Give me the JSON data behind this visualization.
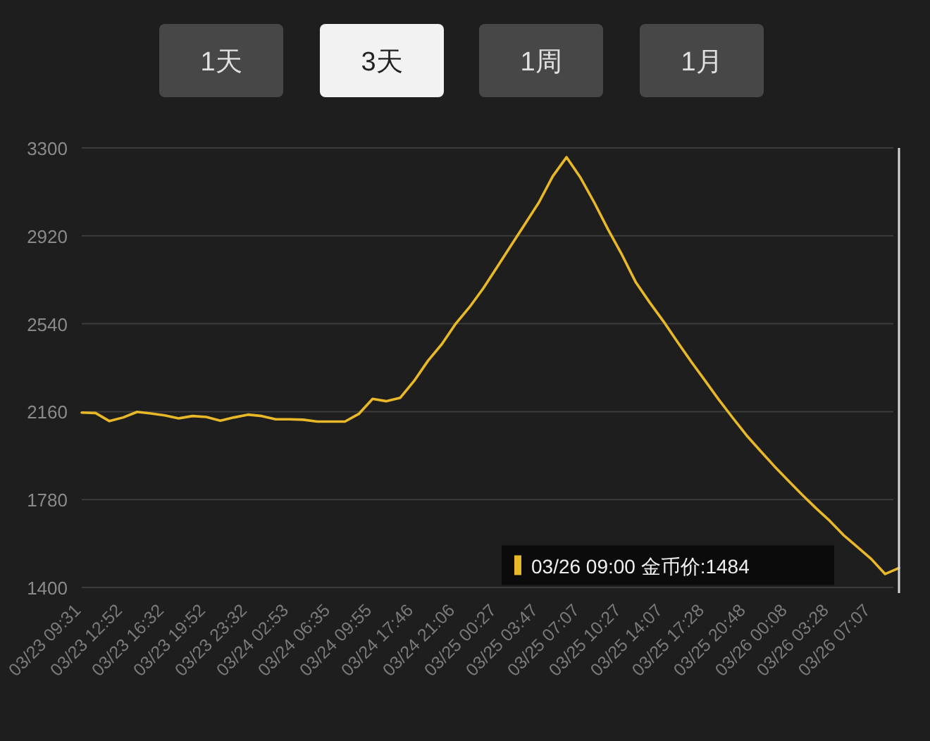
{
  "chart_data": {
    "type": "line",
    "categories": [
      "03/23 09:31",
      null,
      null,
      "03/23 12:52",
      null,
      null,
      "03/23 16:32",
      null,
      null,
      "03/23 19:52",
      null,
      null,
      "03/23 23:32",
      null,
      null,
      "03/24 02:53",
      null,
      null,
      "03/24 06:35",
      null,
      null,
      "03/24 09:55",
      null,
      null,
      "03/24 17:46",
      null,
      null,
      "03/24 21:06",
      null,
      null,
      "03/25 00:27",
      null,
      null,
      "03/25 03:47",
      null,
      null,
      "03/25 07:07",
      null,
      null,
      "03/25 10:27",
      null,
      null,
      "03/25 14:07",
      null,
      null,
      "03/25 17:28",
      null,
      null,
      "03/25 20:48",
      null,
      null,
      "03/26 00:08",
      null,
      null,
      "03/26 03:28",
      null,
      null,
      "03/26 07:07",
      null,
      null
    ],
    "series": [
      {
        "color": "#e8b828",
        "values": [
          2156,
          2154,
          2119,
          2135,
          2159,
          2152,
          2144,
          2131,
          2141,
          2137,
          2121,
          2135,
          2147,
          2141,
          2127,
          2127,
          2125,
          2117,
          2117,
          2117,
          2150,
          2215,
          2205,
          2220,
          2293,
          2380,
          2452,
          2540,
          2612,
          2694,
          2786,
          2879,
          2971,
          3064,
          3177,
          3260,
          3172,
          3064,
          2947,
          2838,
          2719,
          2632,
          2550,
          2462,
          2376,
          2294,
          2211,
          2133,
          2057,
          1990,
          1924,
          1862,
          1801,
          1743,
          1688,
          1626,
          1575,
          1523,
          1458,
          1484
        ]
      }
    ],
    "ylim": [
      1400,
      3300
    ],
    "yticks": [
      1400,
      1780,
      2160,
      2540,
      2920,
      3300
    ],
    "grid": "y",
    "marker": "none",
    "line_style": "solid",
    "annotations": [
      "1天",
      "3天",
      "1周",
      "1月",
      "03/26 09:00 金币价:1484"
    ]
  }
}
